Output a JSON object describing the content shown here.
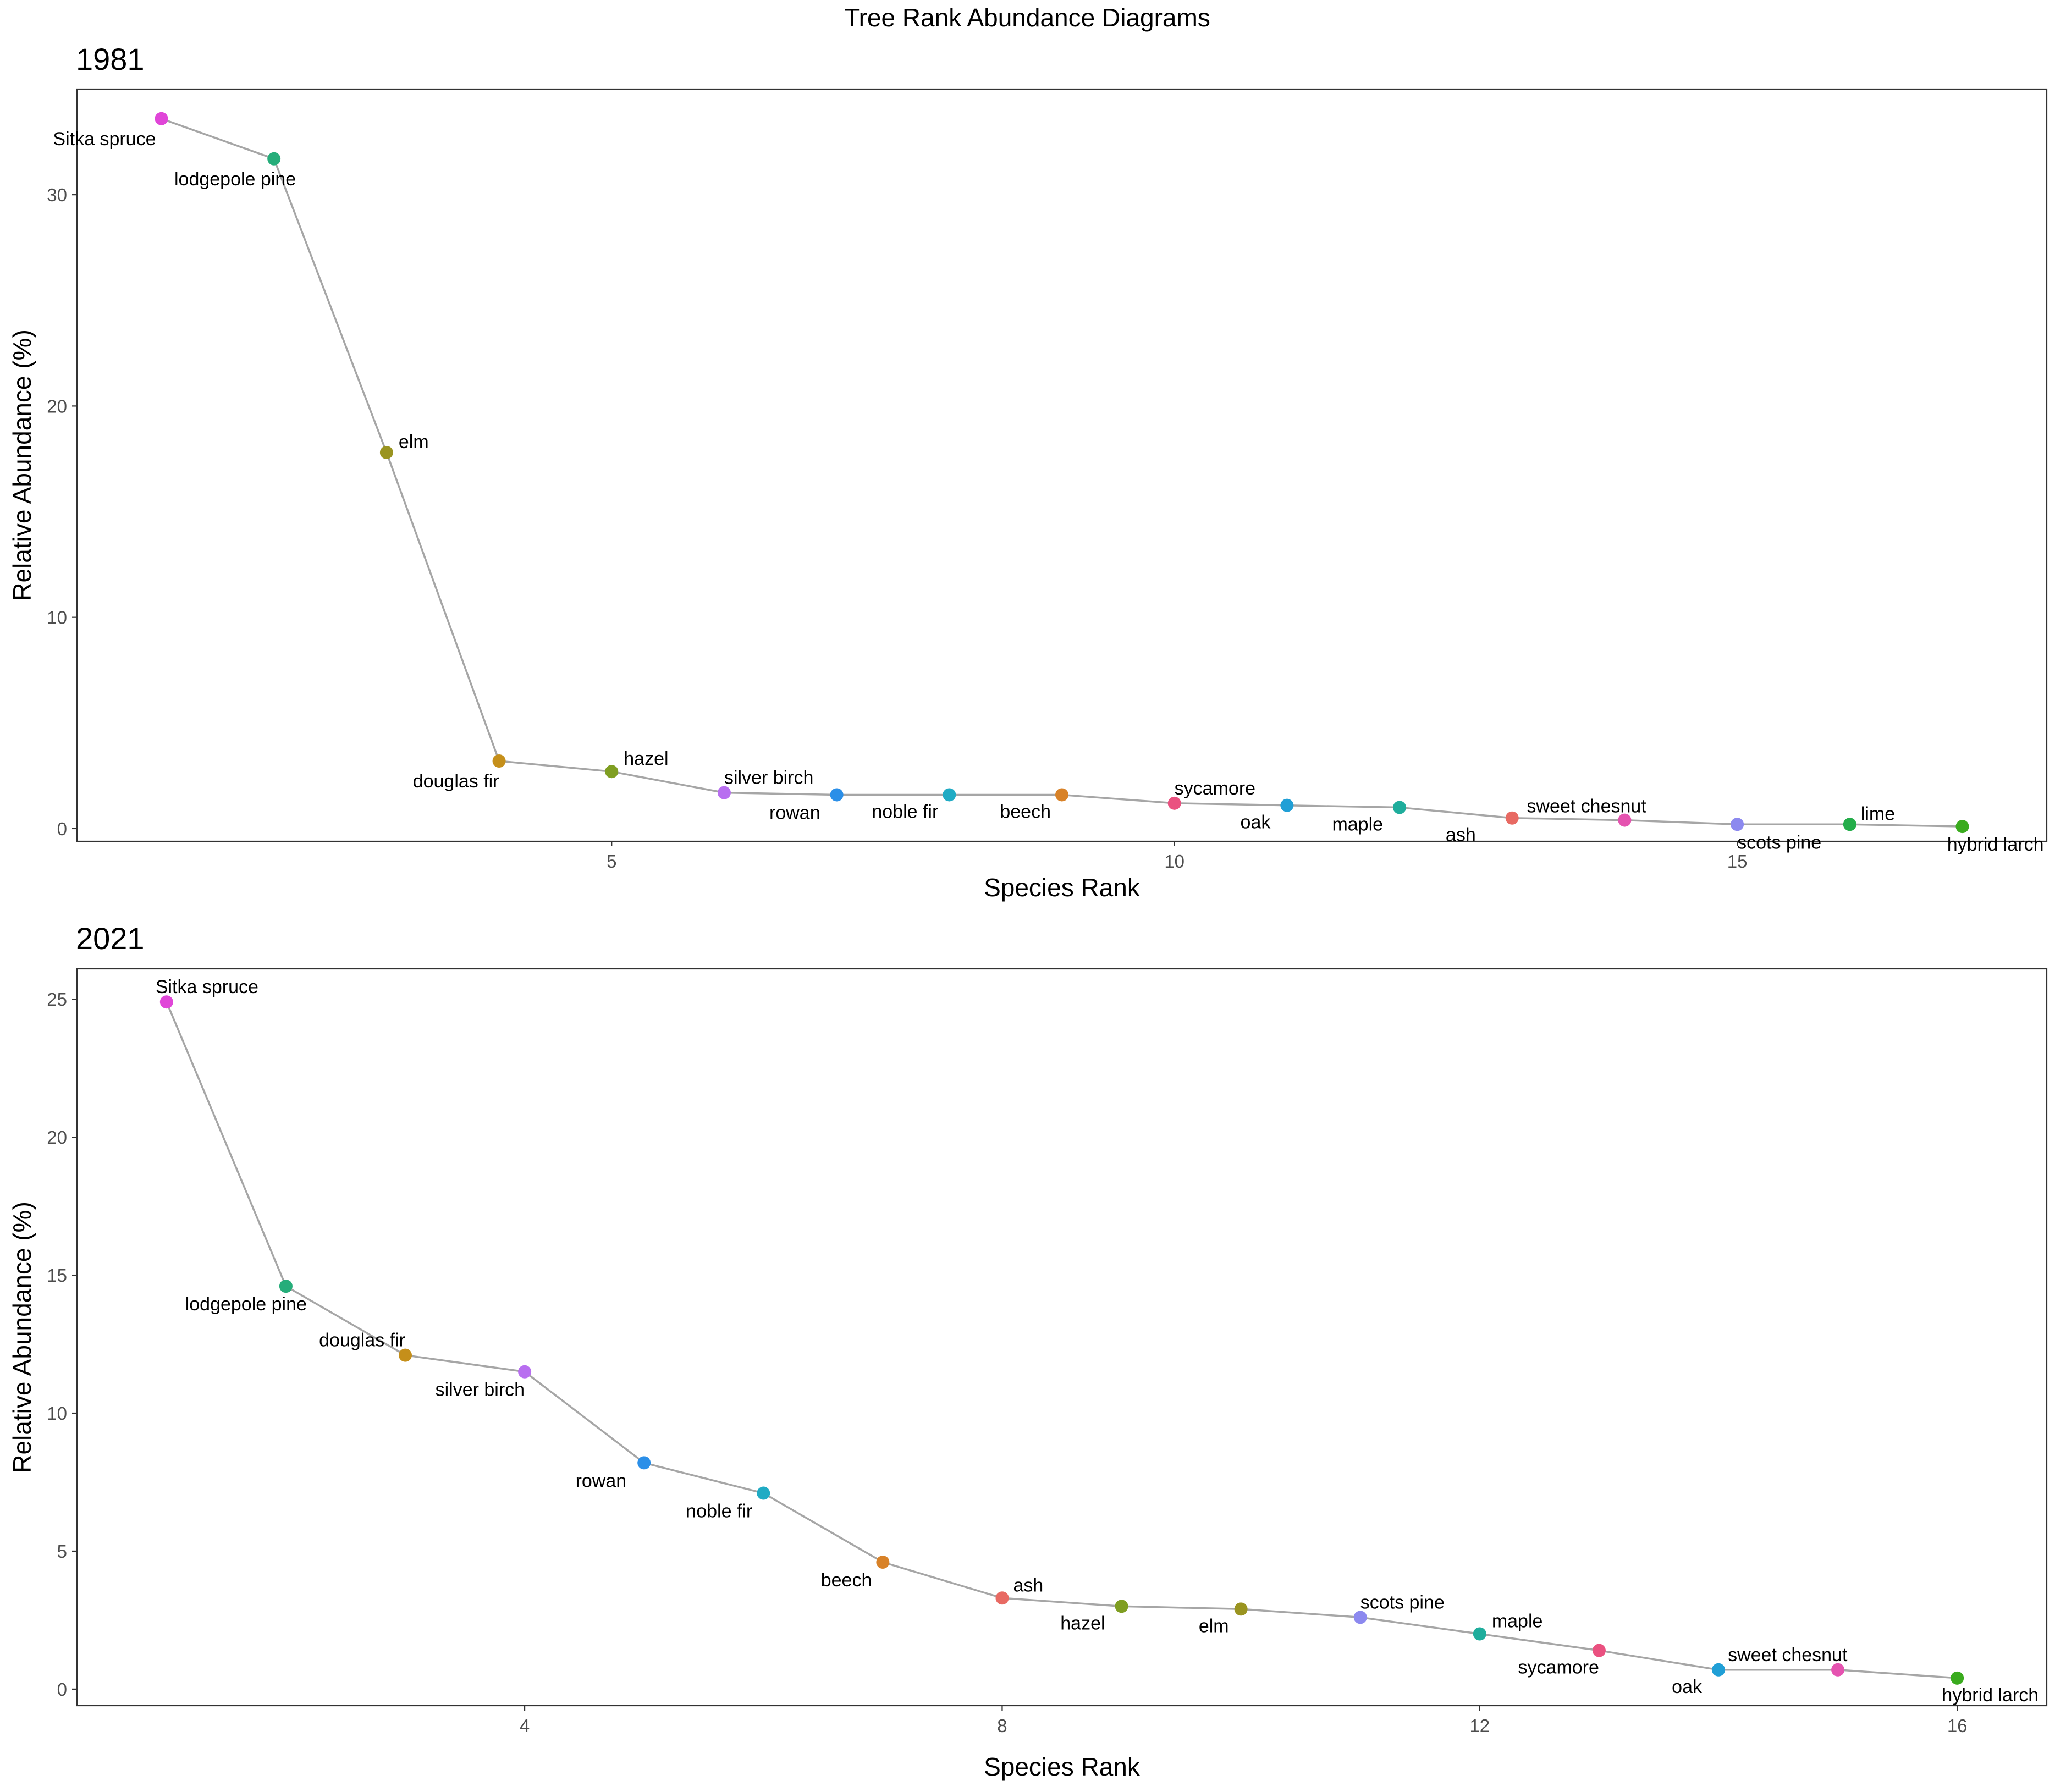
{
  "title": "Tree Rank Abundance Diagrams",
  "chart_data": [
    {
      "type": "line",
      "panel_title": "1981",
      "xlabel": "Species Rank",
      "ylabel": "Relative Abundance (%)",
      "xlim": [
        0.25,
        17.75
      ],
      "ylim": [
        -0.6,
        35
      ],
      "xticks": [
        5,
        10,
        15
      ],
      "yticks": [
        0,
        10,
        20,
        30
      ],
      "grid": false,
      "legend": "none",
      "line_color": "#a6a6a6",
      "points": [
        {
          "rank": 1,
          "species": "Sitka spruce",
          "value": 33.6,
          "color": "#e046d8"
        },
        {
          "rank": 2,
          "species": "lodgepole pine",
          "value": 31.7,
          "color": "#26ad7a"
        },
        {
          "rank": 3,
          "species": "elm",
          "value": 17.8,
          "color": "#9a9420"
        },
        {
          "rank": 4,
          "species": "douglas fir",
          "value": 3.2,
          "color": "#c58f1a"
        },
        {
          "rank": 5,
          "species": "hazel",
          "value": 2.7,
          "color": "#7f9e22"
        },
        {
          "rank": 6,
          "species": "silver birch",
          "value": 1.7,
          "color": "#b86ef0"
        },
        {
          "rank": 7,
          "species": "rowan",
          "value": 1.6,
          "color": "#2b8fe8"
        },
        {
          "rank": 8,
          "species": "noble fir",
          "value": 1.6,
          "color": "#20abc4"
        },
        {
          "rank": 9,
          "species": "beech",
          "value": 1.6,
          "color": "#d88228"
        },
        {
          "rank": 10,
          "species": "sycamore",
          "value": 1.2,
          "color": "#ea5180"
        },
        {
          "rank": 11,
          "species": "oak",
          "value": 1.1,
          "color": "#209fd6"
        },
        {
          "rank": 12,
          "species": "maple",
          "value": 1.0,
          "color": "#1fad9c"
        },
        {
          "rank": 13,
          "species": "ash",
          "value": 0.5,
          "color": "#e86a63"
        },
        {
          "rank": 14,
          "species": "sweet chesnut",
          "value": 0.4,
          "color": "#e553b0"
        },
        {
          "rank": 15,
          "species": "scots pine",
          "value": 0.2,
          "color": "#8c89ef"
        },
        {
          "rank": 16,
          "species": "lime",
          "value": 0.2,
          "color": "#24ad4a"
        },
        {
          "rank": 17,
          "species": "hybrid larch",
          "value": 0.1,
          "color": "#3aab1e"
        }
      ]
    },
    {
      "type": "line",
      "panel_title": "2021",
      "xlabel": "Species Rank",
      "ylabel": "Relative Abundance (%)",
      "xlim": [
        0.25,
        16.75
      ],
      "ylim": [
        -0.6,
        26.1
      ],
      "xticks": [
        4,
        8,
        12,
        16
      ],
      "yticks": [
        0,
        5,
        10,
        15,
        20,
        25
      ],
      "grid": false,
      "legend": "none",
      "line_color": "#a6a6a6",
      "points": [
        {
          "rank": 1,
          "species": "Sitka spruce",
          "value": 24.9,
          "color": "#e046d8"
        },
        {
          "rank": 2,
          "species": "lodgepole pine",
          "value": 14.6,
          "color": "#26ad7a"
        },
        {
          "rank": 3,
          "species": "douglas fir",
          "value": 12.1,
          "color": "#c58f1a"
        },
        {
          "rank": 4,
          "species": "silver birch",
          "value": 11.5,
          "color": "#b86ef0"
        },
        {
          "rank": 5,
          "species": "rowan",
          "value": 8.2,
          "color": "#2b8fe8"
        },
        {
          "rank": 6,
          "species": "noble fir",
          "value": 7.1,
          "color": "#20abc4"
        },
        {
          "rank": 7,
          "species": "beech",
          "value": 4.6,
          "color": "#d88228"
        },
        {
          "rank": 8,
          "species": "ash",
          "value": 3.3,
          "color": "#e86a63"
        },
        {
          "rank": 9,
          "species": "hazel",
          "value": 3.0,
          "color": "#7f9e22"
        },
        {
          "rank": 10,
          "species": "elm",
          "value": 2.9,
          "color": "#9a9420"
        },
        {
          "rank": 11,
          "species": "scots pine",
          "value": 2.6,
          "color": "#8c89ef"
        },
        {
          "rank": 12,
          "species": "maple",
          "value": 2.0,
          "color": "#1fad9c"
        },
        {
          "rank": 13,
          "species": "sycamore",
          "value": 1.4,
          "color": "#ea5180"
        },
        {
          "rank": 14,
          "species": "oak",
          "value": 0.7,
          "color": "#209fd6"
        },
        {
          "rank": 15,
          "species": "sweet chesnut",
          "value": 0.7,
          "color": "#e553b0"
        },
        {
          "rank": 16,
          "species": "hybrid larch",
          "value": 0.4,
          "color": "#3aab1e"
        }
      ]
    }
  ]
}
